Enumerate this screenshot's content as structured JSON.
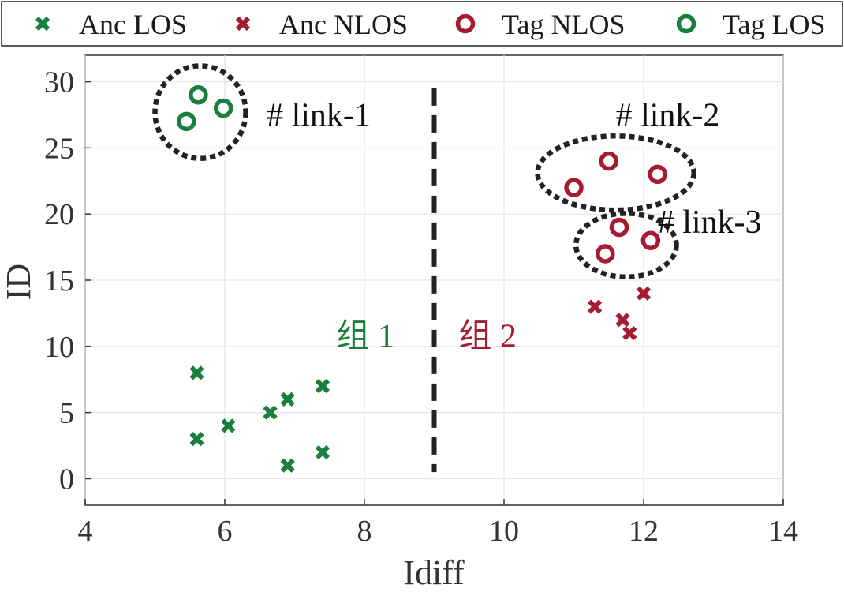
{
  "chart_data": {
    "type": "scatter",
    "title": "",
    "xlabel": "Idiff",
    "ylabel": "ID",
    "xlim": [
      4,
      14
    ],
    "ylim": [
      -2,
      32
    ],
    "xticks": [
      4,
      6,
      8,
      10,
      12,
      14
    ],
    "yticks": [
      0,
      5,
      10,
      15,
      20,
      25,
      30
    ],
    "grid": true,
    "legend_position": "top",
    "series": [
      {
        "name": "Anc LOS",
        "marker": "x",
        "color": "#1a7f3c",
        "points": [
          [
            5.6,
            8
          ],
          [
            5.6,
            3
          ],
          [
            6.05,
            4
          ],
          [
            6.65,
            5
          ],
          [
            6.9,
            6
          ],
          [
            6.9,
            1
          ],
          [
            7.4,
            7
          ],
          [
            7.4,
            2
          ]
        ]
      },
      {
        "name": "Anc NLOS",
        "marker": "x",
        "color": "#a51c30",
        "points": [
          [
            11.3,
            13
          ],
          [
            11.7,
            12
          ],
          [
            11.8,
            11
          ],
          [
            12.0,
            14
          ]
        ]
      },
      {
        "name": "Tag NLOS",
        "marker": "o",
        "color": "#a51c30",
        "points": [
          [
            11.0,
            22
          ],
          [
            11.5,
            24
          ],
          [
            12.2,
            23
          ],
          [
            11.65,
            19
          ],
          [
            11.45,
            17
          ],
          [
            12.1,
            18
          ]
        ]
      },
      {
        "name": "Tag LOS",
        "marker": "o",
        "color": "#1a7f3c",
        "points": [
          [
            5.45,
            27
          ],
          [
            5.62,
            29
          ],
          [
            5.98,
            28
          ]
        ]
      }
    ],
    "divider": {
      "x": 9,
      "y_from": 0.5,
      "y_to": 29.5
    },
    "annotations": [
      {
        "id": "link-1",
        "text": "# link-1",
        "x": 6.6,
        "y": 27.5,
        "color": "#111111"
      },
      {
        "id": "link-2",
        "text": "# link-2",
        "x": 11.6,
        "y": 27.5,
        "color": "#111111"
      },
      {
        "id": "link-3",
        "text": "# link-3",
        "x": 12.2,
        "y": 19.4,
        "color": "#111111"
      },
      {
        "id": "group-1",
        "text": "组 1",
        "x": 7.6,
        "y": 10.8,
        "color": "#1a7f3c"
      },
      {
        "id": "group-2",
        "text": "组 2",
        "x": 9.35,
        "y": 10.8,
        "color": "#a51c30"
      }
    ],
    "clusters": [
      {
        "id": "link-1",
        "cx": 5.65,
        "cy": 27.7,
        "rx": 0.65,
        "ry": 3.5
      },
      {
        "id": "link-2",
        "cx": 11.6,
        "cy": 23.1,
        "rx": 1.12,
        "ry": 2.8
      },
      {
        "id": "link-3",
        "cx": 11.75,
        "cy": 17.65,
        "rx": 0.72,
        "ry": 2.4
      }
    ]
  }
}
